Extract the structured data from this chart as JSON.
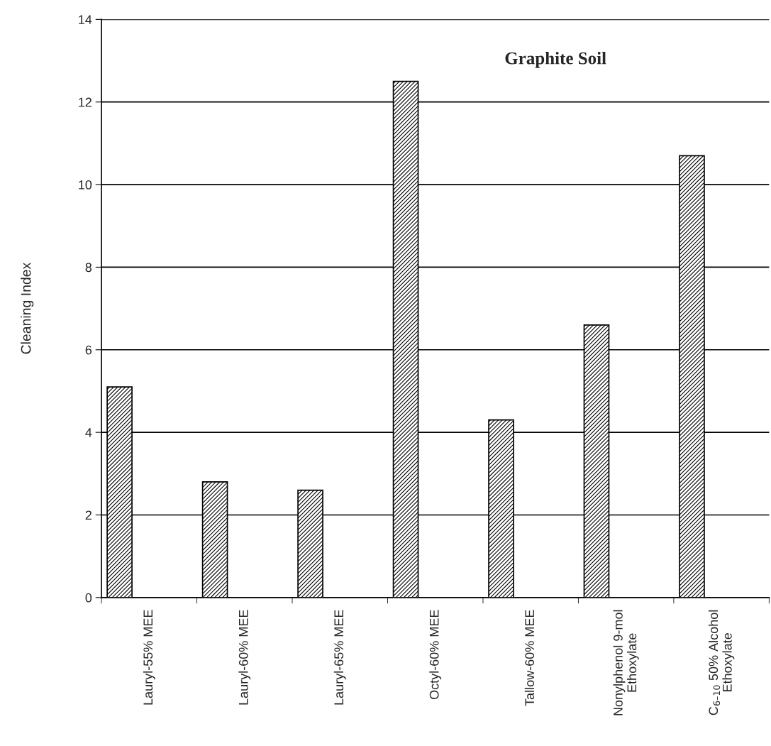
{
  "chart_data": {
    "type": "bar",
    "title": "Graphite Soil",
    "ylabel": "Cleaning Index",
    "categories": [
      "Lauryl-55% MEE",
      "Lauryl-60% MEE",
      "Lauryl-65% MEE",
      "Octyl-60% MEE",
      "Tallow-60% MEE",
      "Nonylphenol 9-mol\nEthoxylate",
      "C$_{6–10}$ 50% Alcohol\nEthoxylate"
    ],
    "values": [
      5.1,
      2.8,
      2.6,
      12.5,
      4.3,
      6.6,
      10.7
    ],
    "color": "#000000",
    "ylim": [
      0,
      14
    ],
    "yticks": [
      0,
      2,
      4,
      6,
      8,
      10,
      12,
      14
    ],
    "grid": "y"
  }
}
